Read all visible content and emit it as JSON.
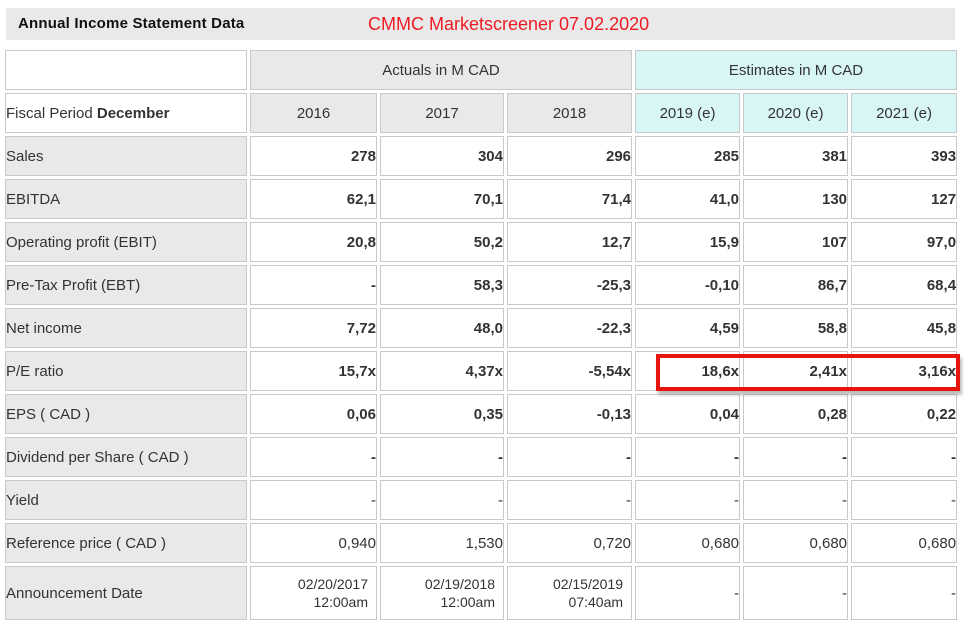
{
  "header": {
    "title": "Annual Income Statement Data",
    "annotation": "CMMC Marketscreener 07.02.2020"
  },
  "table": {
    "group_headers": {
      "actuals": "Actuals in M CAD",
      "estimates": "Estimates in M CAD"
    },
    "fiscal_label": {
      "prefix": "Fiscal Period",
      "bold": "December"
    },
    "years": [
      "2016",
      "2017",
      "2018",
      "2019 (e)",
      "2020 (e)",
      "2021 (e)"
    ],
    "rows": [
      {
        "label": "Sales",
        "values": [
          "278",
          "304",
          "296",
          "285",
          "381",
          "393"
        ],
        "bold": true,
        "tall": false
      },
      {
        "label": "EBITDA",
        "values": [
          "62,1",
          "70,1",
          "71,4",
          "41,0",
          "130",
          "127"
        ],
        "bold": true,
        "tall": false
      },
      {
        "label": "Operating profit (EBIT)",
        "values": [
          "20,8",
          "50,2",
          "12,7",
          "15,9",
          "107",
          "97,0"
        ],
        "bold": true,
        "tall": false
      },
      {
        "label": "Pre-Tax Profit (EBT)",
        "values": [
          "-",
          "58,3",
          "-25,3",
          "-0,10",
          "86,7",
          "68,4"
        ],
        "bold": true,
        "tall": false
      },
      {
        "label": "Net income",
        "values": [
          "7,72",
          "48,0",
          "-22,3",
          "4,59",
          "58,8",
          "45,8"
        ],
        "bold": true,
        "tall": false
      },
      {
        "label": "P/E ratio",
        "values": [
          "15,7x",
          "4,37x",
          "-5,54x",
          "18,6x",
          "2,41x",
          "3,16x"
        ],
        "bold": true,
        "tall": false,
        "highlighted_estimates": true
      },
      {
        "label": "EPS ( CAD )",
        "values": [
          "0,06",
          "0,35",
          "-0,13",
          "0,04",
          "0,28",
          "0,22"
        ],
        "bold": true,
        "tall": false
      },
      {
        "label": "Dividend per Share ( CAD )",
        "values": [
          "-",
          "-",
          "-",
          "-",
          "-",
          "-"
        ],
        "bold": true,
        "tall": false
      },
      {
        "label": "Yield",
        "values": [
          "-",
          "-",
          "-",
          "-",
          "-",
          "-"
        ],
        "bold": false,
        "tall": false
      },
      {
        "label": "Reference price ( CAD )",
        "values": [
          "0,940",
          "1,530",
          "0,720",
          "0,680",
          "0,680",
          "0,680"
        ],
        "bold": false,
        "tall": false
      },
      {
        "label": "Announcement Date",
        "values": [
          "02/20/2017\n12:00am",
          "02/19/2018\n12:00am",
          "02/15/2019\n07:40am",
          "-",
          "-",
          "-"
        ],
        "bold": false,
        "tall": true
      }
    ]
  },
  "colors": {
    "titlebar_bg": "#e9e9e9",
    "label_cell_bg": "#e9e9e9",
    "actuals_header_bg": "#e9e9e9",
    "estimates_header_bg": "#d9f6f7",
    "cell_border": "#c9c9c9",
    "annotation_red": "#ed1c24",
    "highlight_box_red": "#e8150e"
  },
  "chart_data": {
    "type": "table",
    "title": "Annual Income Statement Data",
    "annotation": "CMMC Marketscreener 07.02.2020",
    "column_groups": [
      "Actuals in M CAD",
      "Estimates in M CAD"
    ],
    "columns": [
      "2016",
      "2017",
      "2018",
      "2019 (e)",
      "2020 (e)",
      "2021 (e)"
    ],
    "fiscal_period": "December",
    "rows": [
      {
        "metric": "Sales",
        "values": [
          "278",
          "304",
          "296",
          "285",
          "381",
          "393"
        ]
      },
      {
        "metric": "EBITDA",
        "values": [
          "62,1",
          "70,1",
          "71,4",
          "41,0",
          "130",
          "127"
        ]
      },
      {
        "metric": "Operating profit (EBIT)",
        "values": [
          "20,8",
          "50,2",
          "12,7",
          "15,9",
          "107",
          "97,0"
        ]
      },
      {
        "metric": "Pre-Tax Profit (EBT)",
        "values": [
          "-",
          "58,3",
          "-25,3",
          "-0,10",
          "86,7",
          "68,4"
        ]
      },
      {
        "metric": "Net income",
        "values": [
          "7,72",
          "48,0",
          "-22,3",
          "4,59",
          "58,8",
          "45,8"
        ]
      },
      {
        "metric": "P/E ratio",
        "values": [
          "15,7x",
          "4,37x",
          "-5,54x",
          "18,6x",
          "2,41x",
          "3,16x"
        ],
        "note": "estimate values outlined in red"
      },
      {
        "metric": "EPS ( CAD )",
        "values": [
          "0,06",
          "0,35",
          "-0,13",
          "0,04",
          "0,28",
          "0,22"
        ]
      },
      {
        "metric": "Dividend per Share ( CAD )",
        "values": [
          "-",
          "-",
          "-",
          "-",
          "-",
          "-"
        ]
      },
      {
        "metric": "Yield",
        "values": [
          "-",
          "-",
          "-",
          "-",
          "-",
          "-"
        ]
      },
      {
        "metric": "Reference price ( CAD )",
        "values": [
          "0,940",
          "1,530",
          "0,720",
          "0,680",
          "0,680",
          "0,680"
        ]
      },
      {
        "metric": "Announcement Date",
        "values": [
          "02/20/2017 12:00am",
          "02/19/2018 12:00am",
          "02/15/2019 07:40am",
          "-",
          "-",
          "-"
        ]
      }
    ]
  }
}
